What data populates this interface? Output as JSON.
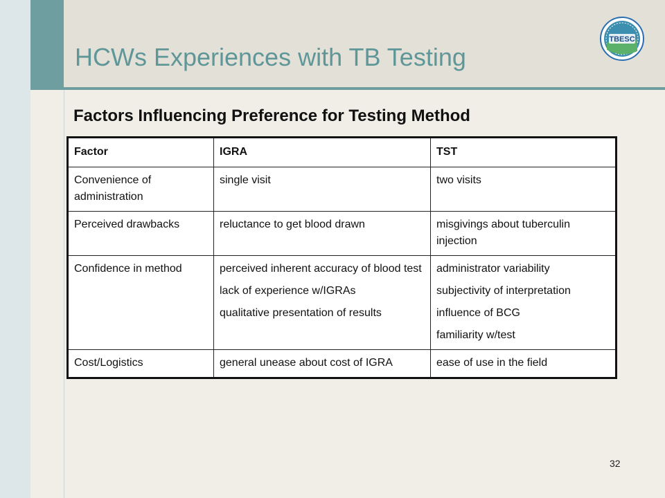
{
  "slide": {
    "title": "HCWs Experiences with TB Testing",
    "subtitle": "Factors Influencing Preference for Testing Method",
    "page_number": "32",
    "logo_text": "TBESC",
    "accent_color": "#6e9ea0",
    "title_color": "#5f9798"
  },
  "table": {
    "headers": [
      "Factor",
      "IGRA",
      "TST"
    ],
    "rows": [
      {
        "factor": "Convenience of administration",
        "igra": [
          "single visit"
        ],
        "tst": [
          "two visits"
        ]
      },
      {
        "factor": "Perceived drawbacks",
        "igra": [
          "reluctance to get blood drawn"
        ],
        "tst": [
          "misgivings about tuberculin injection"
        ]
      },
      {
        "factor": "Confidence in method",
        "igra": [
          "perceived inherent accuracy of blood test",
          "lack of experience w/IGRAs",
          "qualitative presentation of results"
        ],
        "tst": [
          "administrator variability",
          "subjectivity of interpretation",
          "influence of BCG",
          "familiarity w/test"
        ]
      },
      {
        "factor": "Cost/Logistics",
        "igra": [
          "general unease about cost of IGRA"
        ],
        "tst": [
          "ease of use in the field"
        ]
      }
    ]
  }
}
